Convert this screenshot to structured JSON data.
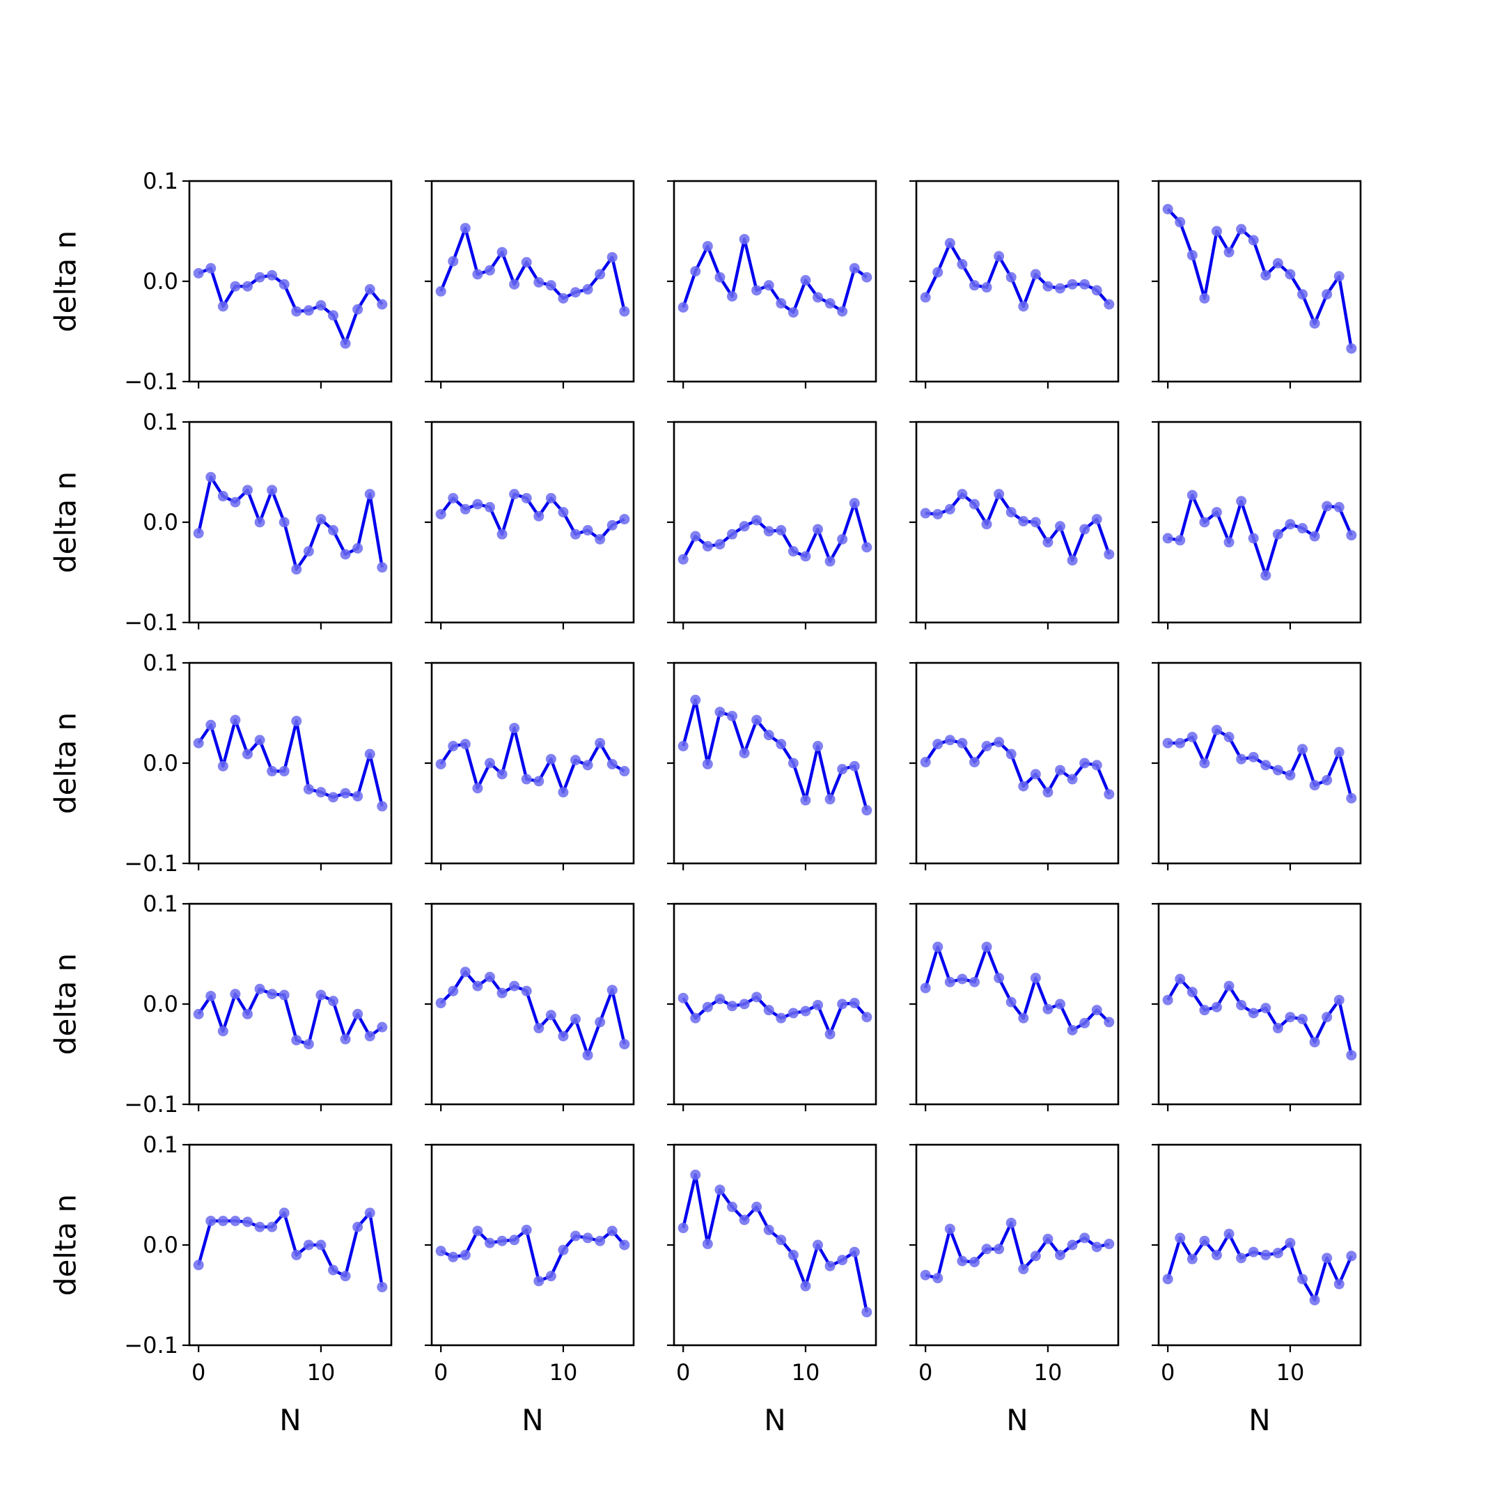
{
  "chart_data": {
    "type": "line",
    "layout": "5x5 grid",
    "xlabel": "N",
    "ylabel": "delta n",
    "xlim": [
      -0.75,
      15.75
    ],
    "ylim": [
      -0.1,
      0.1
    ],
    "x_ticks": [
      0,
      10
    ],
    "y_ticks": [
      0.1,
      0.0,
      -0.1
    ],
    "x_tick_labels": [
      "0",
      "10"
    ],
    "y_tick_labels": [
      "0.1",
      "0.0",
      "−0.1"
    ],
    "x": [
      0,
      1,
      2,
      3,
      4,
      5,
      6,
      7,
      8,
      9,
      10,
      11,
      12,
      13,
      14,
      15
    ],
    "line_color": "#0000ee",
    "marker_color": "#6b6bf0",
    "grid": false,
    "panels": [
      [
        0.008,
        0.013,
        -0.025,
        -0.005,
        -0.005,
        0.004,
        0.006,
        -0.003,
        -0.03,
        -0.029,
        -0.024,
        -0.034,
        -0.062,
        -0.028,
        -0.008,
        -0.023
      ],
      [
        -0.01,
        0.02,
        0.053,
        0.007,
        0.011,
        0.029,
        -0.003,
        0.019,
        -0.001,
        -0.004,
        -0.017,
        -0.011,
        -0.008,
        0.007,
        0.024,
        -0.03
      ],
      [
        -0.026,
        0.01,
        0.035,
        0.004,
        -0.015,
        0.042,
        -0.009,
        -0.004,
        -0.022,
        -0.031,
        0.001,
        -0.016,
        -0.022,
        -0.03,
        0.013,
        0.004
      ],
      [
        -0.016,
        0.009,
        0.038,
        0.017,
        -0.004,
        -0.006,
        0.025,
        0.004,
        -0.025,
        0.007,
        -0.005,
        -0.007,
        -0.003,
        -0.003,
        -0.009,
        -0.023
      ],
      [
        0.072,
        0.059,
        0.026,
        -0.017,
        0.05,
        0.029,
        0.052,
        0.041,
        0.006,
        0.018,
        0.007,
        -0.013,
        -0.042,
        -0.013,
        0.005,
        -0.067
      ],
      [
        -0.011,
        0.045,
        0.026,
        0.02,
        0.032,
        0.0,
        0.032,
        0.0,
        -0.047,
        -0.029,
        0.003,
        -0.008,
        -0.032,
        -0.026,
        0.028,
        -0.045
      ],
      [
        0.008,
        0.024,
        0.013,
        0.018,
        0.015,
        -0.012,
        0.028,
        0.024,
        0.006,
        0.024,
        0.01,
        -0.012,
        -0.008,
        -0.017,
        -0.003,
        0.003
      ],
      [
        -0.037,
        -0.014,
        -0.024,
        -0.022,
        -0.012,
        -0.004,
        0.002,
        -0.009,
        -0.008,
        -0.029,
        -0.034,
        -0.007,
        -0.039,
        -0.017,
        0.019,
        -0.025
      ],
      [
        0.009,
        0.008,
        0.013,
        0.028,
        0.018,
        -0.002,
        0.028,
        0.01,
        0.001,
        0.0,
        -0.02,
        -0.004,
        -0.038,
        -0.007,
        0.003,
        -0.032
      ],
      [
        -0.016,
        -0.018,
        0.027,
        0.0,
        0.01,
        -0.02,
        0.021,
        -0.016,
        -0.053,
        -0.012,
        -0.002,
        -0.006,
        -0.014,
        0.016,
        0.015,
        -0.013
      ],
      [
        0.02,
        0.038,
        -0.003,
        0.043,
        0.009,
        0.023,
        -0.008,
        -0.008,
        0.042,
        -0.026,
        -0.029,
        -0.034,
        -0.03,
        -0.033,
        0.009,
        -0.043
      ],
      [
        -0.001,
        0.017,
        0.019,
        -0.025,
        0.0,
        -0.011,
        0.035,
        -0.016,
        -0.018,
        0.004,
        -0.029,
        0.003,
        -0.002,
        0.02,
        -0.001,
        -0.008
      ],
      [
        0.017,
        0.063,
        -0.001,
        0.051,
        0.047,
        0.01,
        0.043,
        0.028,
        0.019,
        0.0,
        -0.037,
        0.017,
        -0.036,
        -0.006,
        -0.003,
        -0.047
      ],
      [
        0.001,
        0.019,
        0.023,
        0.02,
        0.001,
        0.017,
        0.021,
        0.009,
        -0.023,
        -0.011,
        -0.029,
        -0.007,
        -0.016,
        0.0,
        -0.002,
        -0.031
      ],
      [
        0.02,
        0.02,
        0.026,
        0.0,
        0.033,
        0.026,
        0.004,
        0.006,
        -0.002,
        -0.007,
        -0.012,
        0.014,
        -0.022,
        -0.017,
        0.011,
        -0.035
      ],
      [
        -0.01,
        0.008,
        -0.027,
        0.01,
        -0.01,
        0.015,
        0.01,
        0.009,
        -0.036,
        -0.04,
        0.009,
        0.003,
        -0.035,
        -0.01,
        -0.032,
        -0.023
      ],
      [
        0.001,
        0.013,
        0.032,
        0.018,
        0.027,
        0.011,
        0.018,
        0.013,
        -0.024,
        -0.011,
        -0.032,
        -0.015,
        -0.051,
        -0.018,
        0.014,
        -0.04
      ],
      [
        0.006,
        -0.014,
        -0.003,
        0.005,
        -0.002,
        0.0,
        0.007,
        -0.006,
        -0.014,
        -0.009,
        -0.007,
        -0.001,
        -0.03,
        0.0,
        0.001,
        -0.013
      ],
      [
        0.016,
        0.057,
        0.022,
        0.025,
        0.022,
        0.057,
        0.026,
        0.002,
        -0.014,
        0.026,
        -0.005,
        0.0,
        -0.026,
        -0.019,
        -0.006,
        -0.018
      ],
      [
        0.004,
        0.025,
        0.012,
        -0.006,
        -0.003,
        0.018,
        -0.001,
        -0.009,
        -0.004,
        -0.024,
        -0.013,
        -0.015,
        -0.038,
        -0.013,
        0.004,
        -0.051
      ],
      [
        -0.02,
        0.024,
        0.024,
        0.024,
        0.023,
        0.018,
        0.018,
        0.032,
        -0.01,
        0.0,
        0.0,
        -0.025,
        -0.031,
        0.018,
        0.032,
        -0.042
      ],
      [
        -0.006,
        -0.012,
        -0.01,
        0.014,
        0.002,
        0.004,
        0.005,
        0.015,
        -0.036,
        -0.031,
        -0.005,
        0.009,
        0.007,
        0.004,
        0.014,
        0.0
      ],
      [
        0.017,
        0.07,
        0.001,
        0.055,
        0.038,
        0.025,
        0.038,
        0.015,
        0.005,
        -0.01,
        -0.041,
        0.0,
        -0.021,
        -0.015,
        -0.007,
        -0.067
      ],
      [
        -0.03,
        -0.033,
        0.016,
        -0.016,
        -0.017,
        -0.004,
        -0.004,
        0.022,
        -0.024,
        -0.011,
        0.006,
        -0.01,
        0.0,
        0.007,
        -0.002,
        0.001
      ],
      [
        -0.034,
        0.007,
        -0.014,
        0.004,
        -0.01,
        0.011,
        -0.013,
        -0.007,
        -0.01,
        -0.008,
        0.002,
        -0.034,
        -0.055,
        -0.013,
        -0.039,
        -0.011
      ]
    ]
  }
}
